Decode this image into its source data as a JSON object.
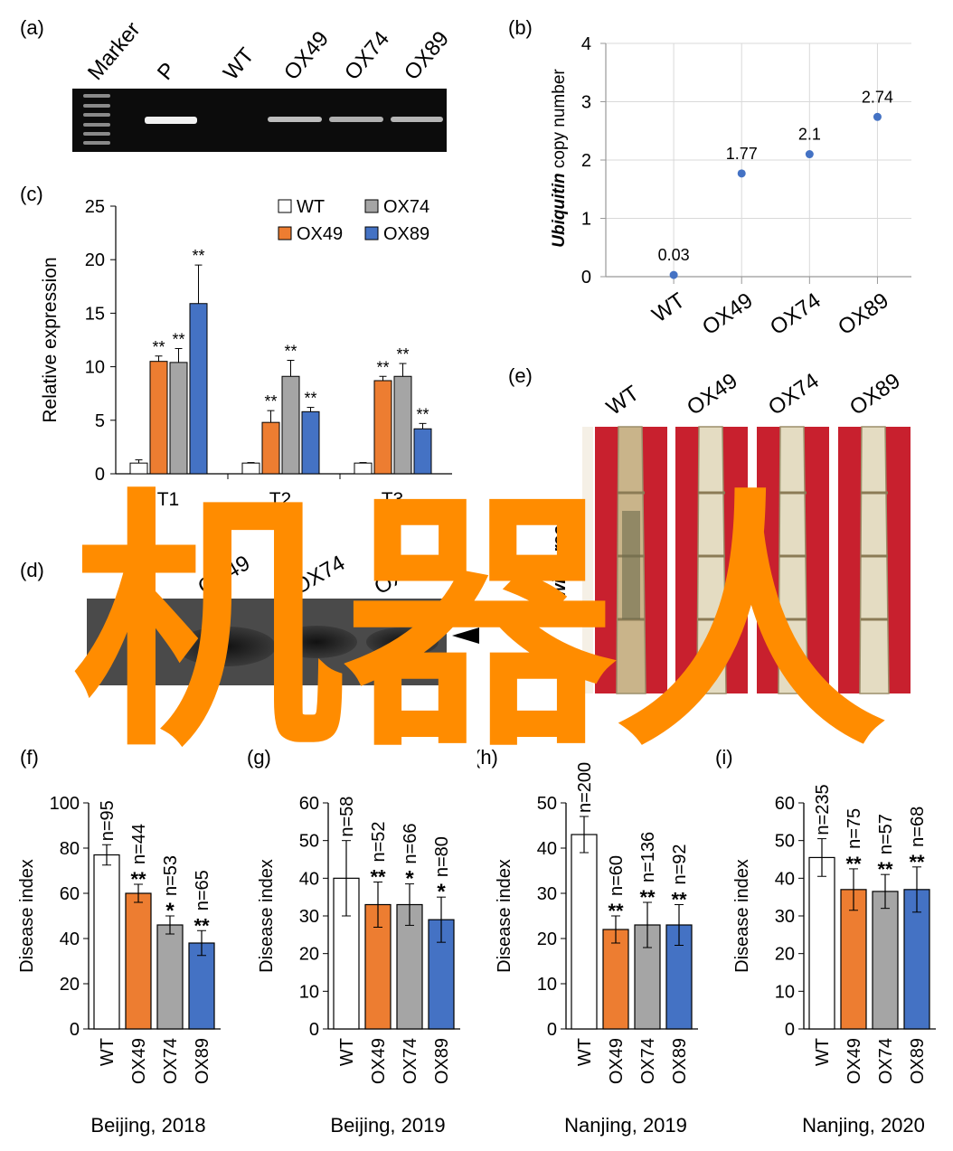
{
  "colors": {
    "wt": "#ffffff",
    "ox49": "#ED7D31",
    "ox74": "#A5A5A5",
    "ox89": "#4472C4",
    "scatter_point": "#4472C4",
    "watermark": "#FF8C00",
    "stem_background": "#C8202E"
  },
  "panels": {
    "a": {
      "label": "(a)",
      "lanes": [
        "Marker",
        "P",
        "WT",
        "OX49",
        "OX74",
        "OX89"
      ]
    },
    "b": {
      "label": "(b)",
      "ylabel_italic": "Ubiquitin",
      "ylabel_rest": " copy number"
    },
    "c": {
      "label": "(c)"
    },
    "d": {
      "label": "(d)",
      "lanes": [
        "OX49",
        "OX74",
        "OX89"
      ]
    },
    "e": {
      "label": "(e)",
      "genotypes": [
        "WT",
        "OX49",
        "OX74",
        "OX89"
      ],
      "side_label": "dp wit... realis"
    },
    "f": {
      "label": "(f)"
    },
    "g": {
      "label": "(g)"
    },
    "h": {
      "label": "(h)"
    },
    "i": {
      "label": "(i)"
    }
  },
  "watermark_text": "机器人",
  "chart_data": [
    {
      "panel": "b",
      "type": "scatter",
      "categories": [
        "WT",
        "OX49",
        "OX74",
        "OX89"
      ],
      "values": [
        0.03,
        1.77,
        2.1,
        2.74
      ],
      "data_labels": [
        "0.03",
        "1.77",
        "2.1",
        "2.74"
      ],
      "ylim": [
        0,
        4
      ],
      "yticks": [
        0,
        1,
        2,
        3,
        4
      ],
      "grid": true
    },
    {
      "panel": "c",
      "type": "bar",
      "categories": [
        "T1",
        "T2",
        "T3"
      ],
      "series": [
        {
          "name": "WT",
          "values": [
            1.0,
            1.0,
            1.0
          ],
          "errors": [
            0.3,
            0.05,
            0.05
          ],
          "sig": [
            "",
            "",
            ""
          ]
        },
        {
          "name": "OX49",
          "values": [
            10.5,
            4.8,
            8.7
          ],
          "errors": [
            0.5,
            1.1,
            0.4
          ],
          "sig": [
            "**",
            "**",
            "**"
          ]
        },
        {
          "name": "OX74",
          "values": [
            10.4,
            9.1,
            9.1
          ],
          "errors": [
            1.3,
            1.5,
            1.2
          ],
          "sig": [
            "**",
            "**",
            "**"
          ]
        },
        {
          "name": "OX89",
          "values": [
            15.9,
            5.8,
            4.2
          ],
          "errors": [
            3.6,
            0.4,
            0.5
          ],
          "sig": [
            "**",
            "**",
            "**"
          ]
        }
      ],
      "ylabel": "Relative expression",
      "ylim": [
        0,
        25
      ],
      "yticks": [
        0,
        5,
        10,
        15,
        20,
        25
      ],
      "legend": "top-right"
    },
    {
      "panel": "f",
      "type": "bar",
      "categories": [
        "WT",
        "OX49",
        "OX74",
        "OX89"
      ],
      "values": [
        77,
        60,
        46,
        38
      ],
      "errors": [
        4.5,
        4,
        4,
        5.5
      ],
      "n_labels": [
        "n=95",
        "n=44",
        "n=53",
        "n=65"
      ],
      "sig": [
        "",
        "**",
        "*",
        "**"
      ],
      "ylabel": "Disease index",
      "xlabel": "Beijing, 2018",
      "ylim": [
        0,
        100
      ],
      "yticks": [
        0,
        20,
        40,
        60,
        80,
        100
      ]
    },
    {
      "panel": "g",
      "type": "bar",
      "categories": [
        "WT",
        "OX49",
        "OX74",
        "OX89"
      ],
      "values": [
        40,
        33,
        33,
        29
      ],
      "errors": [
        10,
        6,
        5.5,
        6
      ],
      "n_labels": [
        "n=58",
        "n=52",
        "n=66",
        "n=80"
      ],
      "sig": [
        "",
        "**",
        "*",
        "*"
      ],
      "ylabel": "Disease index",
      "xlabel": "Beijing, 2019",
      "ylim": [
        0,
        60
      ],
      "yticks": [
        0,
        10,
        20,
        30,
        40,
        50,
        60
      ]
    },
    {
      "panel": "h",
      "type": "bar",
      "categories": [
        "WT",
        "OX49",
        "OX74",
        "OX89"
      ],
      "values": [
        43,
        22,
        23,
        23
      ],
      "errors": [
        4,
        3,
        5,
        4.5
      ],
      "n_labels": [
        "n=200",
        "n=60",
        "n=136",
        "n=92"
      ],
      "sig": [
        "",
        "**",
        "**",
        "**"
      ],
      "ylabel": "Disease index",
      "xlabel": "Nanjing, 2019",
      "ylim": [
        0,
        50
      ],
      "yticks": [
        0,
        10,
        20,
        30,
        40,
        50
      ]
    },
    {
      "panel": "i",
      "type": "bar",
      "categories": [
        "WT",
        "OX49",
        "OX74",
        "OX89"
      ],
      "values": [
        45.5,
        37,
        36.5,
        37
      ],
      "errors": [
        5,
        5.5,
        4.5,
        6
      ],
      "n_labels": [
        "n=235",
        "n=75",
        "n=57",
        "n=68"
      ],
      "sig": [
        "",
        "**",
        "**",
        "**"
      ],
      "ylabel": "Disease index",
      "xlabel": "Nanjing, 2020",
      "ylim": [
        0,
        60
      ],
      "yticks": [
        0,
        10,
        20,
        30,
        40,
        50,
        60
      ]
    }
  ]
}
